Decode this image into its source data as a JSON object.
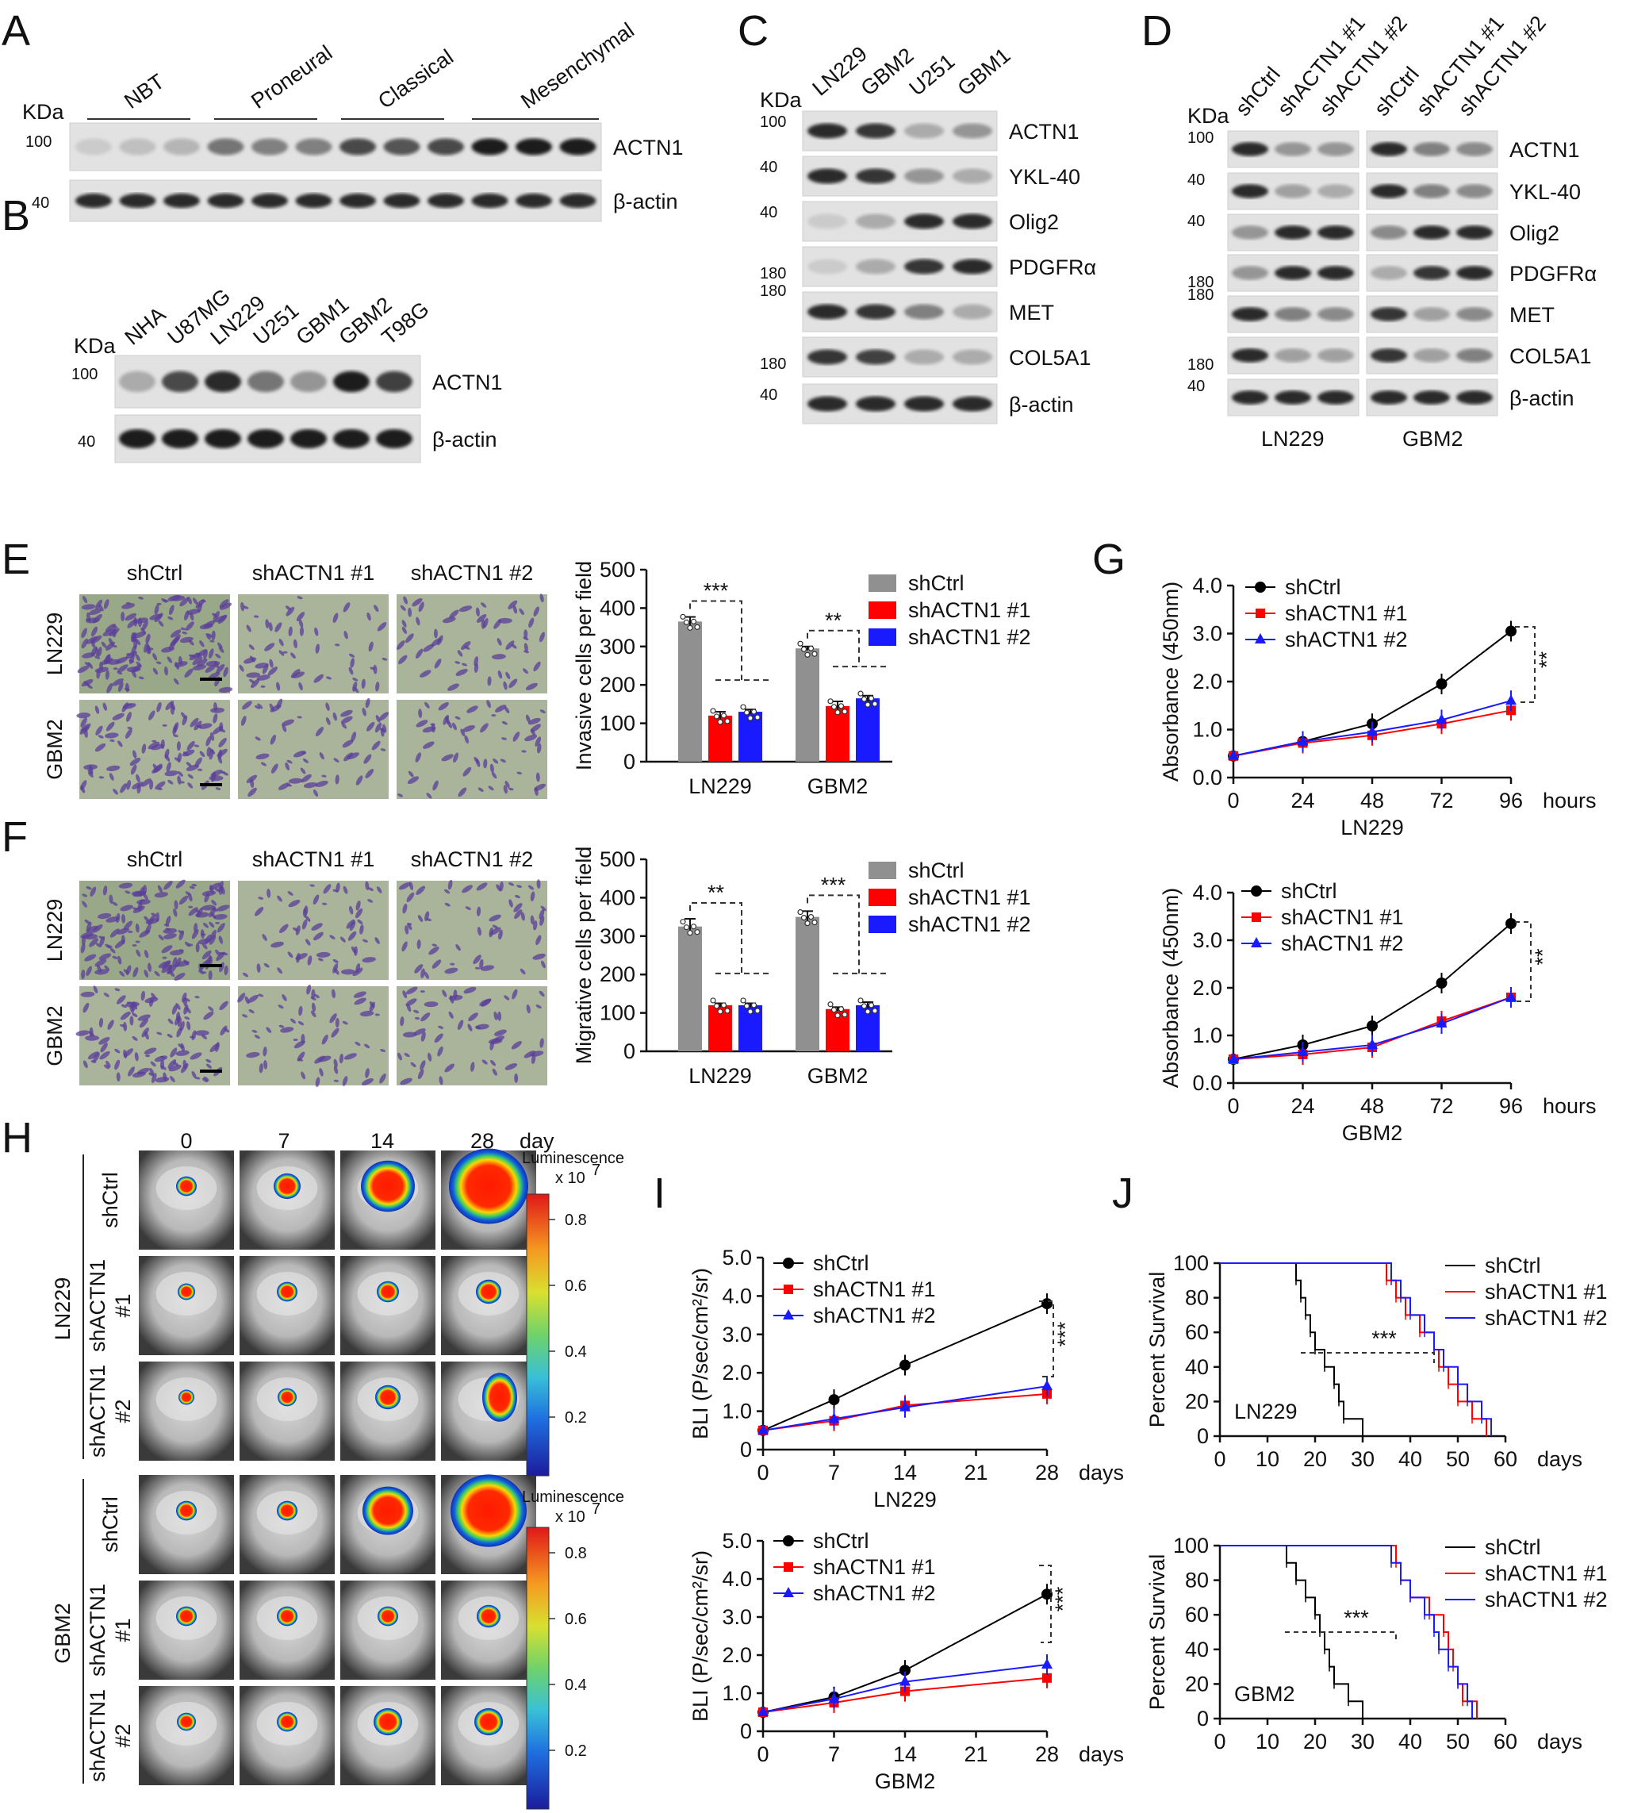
{
  "panel_letters": [
    "A",
    "B",
    "C",
    "D",
    "E",
    "F",
    "G",
    "H",
    "I",
    "J"
  ],
  "kda": "KDa",
  "panelA": {
    "groups": [
      "NBT",
      "Proneural",
      "Classical",
      "Mesenchymal"
    ],
    "markers": [
      "100",
      "40"
    ],
    "rows": [
      {
        "label": "ACTN1",
        "intensity": [
          0.15,
          0.2,
          0.25,
          0.55,
          0.5,
          0.5,
          0.75,
          0.7,
          0.75,
          0.95,
          0.95,
          0.95
        ]
      },
      {
        "label": "β-actin",
        "intensity": [
          0.9,
          0.9,
          0.9,
          0.9,
          0.9,
          0.9,
          0.9,
          0.9,
          0.9,
          0.9,
          0.9,
          0.9
        ]
      }
    ]
  },
  "panelB": {
    "lanes": [
      "NHA",
      "U87MG",
      "LN229",
      "U251",
      "GBM1",
      "GBM2",
      "T98G"
    ],
    "markers": [
      "100",
      "40"
    ],
    "rows": [
      {
        "label": "ACTN1",
        "intensity": [
          0.3,
          0.75,
          0.9,
          0.55,
          0.4,
          0.95,
          0.8
        ]
      },
      {
        "label": "β-actin",
        "intensity": [
          0.95,
          0.95,
          0.95,
          0.95,
          0.95,
          0.95,
          0.95
        ]
      }
    ]
  },
  "panelC": {
    "lanes": [
      "LN229",
      "GBM2",
      "U251",
      "GBM1"
    ],
    "markers": [
      "100",
      "40",
      "40",
      "180",
      "180",
      "180",
      "40"
    ],
    "rows": [
      {
        "label": "ACTN1",
        "intensity": [
          0.9,
          0.85,
          0.3,
          0.4
        ]
      },
      {
        "label": "YKL-40",
        "intensity": [
          0.9,
          0.85,
          0.4,
          0.3
        ]
      },
      {
        "label": "Olig2",
        "intensity": [
          0.15,
          0.3,
          0.9,
          0.9
        ]
      },
      {
        "label": "PDGFRα",
        "intensity": [
          0.15,
          0.3,
          0.85,
          0.9
        ]
      },
      {
        "label": "MET",
        "intensity": [
          0.9,
          0.85,
          0.5,
          0.3
        ]
      },
      {
        "label": "COL5A1",
        "intensity": [
          0.85,
          0.8,
          0.3,
          0.3
        ]
      },
      {
        "label": "β-actin",
        "intensity": [
          0.9,
          0.9,
          0.9,
          0.9
        ]
      }
    ]
  },
  "panelD": {
    "lanes": [
      "shCtrl",
      "shACTN1 #1",
      "shACTN1 #2",
      "shCtrl",
      "shACTN1 #1",
      "shACTN1 #2"
    ],
    "markers": [
      "100",
      "40",
      "40",
      "180",
      "180",
      "180",
      "40"
    ],
    "groups": [
      "LN229",
      "GBM2"
    ],
    "rows": [
      {
        "label": "ACTN1",
        "intensity": [
          0.9,
          0.4,
          0.4,
          0.9,
          0.5,
          0.45
        ]
      },
      {
        "label": "YKL-40",
        "intensity": [
          0.9,
          0.35,
          0.3,
          0.9,
          0.5,
          0.45
        ]
      },
      {
        "label": "Olig2",
        "intensity": [
          0.4,
          0.9,
          0.9,
          0.45,
          0.9,
          0.9
        ]
      },
      {
        "label": "PDGFRα",
        "intensity": [
          0.4,
          0.9,
          0.9,
          0.3,
          0.85,
          0.9
        ]
      },
      {
        "label": "MET",
        "intensity": [
          0.9,
          0.5,
          0.45,
          0.85,
          0.35,
          0.45
        ]
      },
      {
        "label": "COL5A1",
        "intensity": [
          0.9,
          0.35,
          0.35,
          0.85,
          0.35,
          0.5
        ]
      },
      {
        "label": "β-actin",
        "intensity": [
          0.9,
          0.9,
          0.9,
          0.9,
          0.9,
          0.9
        ]
      }
    ]
  },
  "micro": {
    "cols": [
      "shCtrl",
      "shACTN1 #1",
      "shACTN1 #2"
    ],
    "rows": [
      "LN229",
      "GBM2"
    ]
  },
  "legend_sh": [
    "shCtrl",
    "shACTN1 #1",
    "shACTN1 #2"
  ],
  "chart_data": [
    {
      "id": "E",
      "type": "bar",
      "ylabel": "Invasive cells per field",
      "ylim": [
        0,
        500
      ],
      "yticks": [
        "0",
        "100",
        "200",
        "300",
        "400",
        "500"
      ],
      "categories": [
        "LN229",
        "GBM2"
      ],
      "series": [
        {
          "name": "shCtrl",
          "color": "#909090",
          "values": [
            365,
            295
          ],
          "err": [
            12,
            5
          ]
        },
        {
          "name": "shACTN1 #1",
          "color": "#ff0000",
          "values": [
            120,
            145
          ],
          "err": [
            10,
            12
          ]
        },
        {
          "name": "shACTN1 #2",
          "color": "#1a1aff",
          "values": [
            130,
            165
          ],
          "err": [
            6,
            7
          ]
        }
      ],
      "annotations": [
        "***",
        "**"
      ]
    },
    {
      "id": "F",
      "type": "bar",
      "ylabel": "Migrative cells per field",
      "ylim": [
        0,
        500
      ],
      "yticks": [
        "0",
        "100",
        "200",
        "300",
        "400",
        "500"
      ],
      "categories": [
        "LN229",
        "GBM2"
      ],
      "series": [
        {
          "name": "shCtrl",
          "color": "#909090",
          "values": [
            325,
            350
          ],
          "err": [
            20,
            15
          ]
        },
        {
          "name": "shACTN1 #1",
          "color": "#ff0000",
          "values": [
            120,
            110
          ],
          "err": [
            5,
            5
          ]
        },
        {
          "name": "shACTN1 #2",
          "color": "#1a1aff",
          "values": [
            120,
            120
          ],
          "err": [
            5,
            8
          ]
        }
      ],
      "annotations": [
        "**",
        "***"
      ]
    },
    {
      "id": "G1",
      "type": "line",
      "title": "LN229",
      "ylabel": "Absorbance (450nm)",
      "xlabel": "hours",
      "x": [
        0,
        24,
        48,
        72,
        96
      ],
      "xticks": [
        "0",
        "24",
        "48",
        "72",
        "96"
      ],
      "ylim": [
        0,
        4
      ],
      "yticks": [
        "0.0",
        "1.0",
        "2.0",
        "3.0",
        "4.0"
      ],
      "series": [
        {
          "name": "shCtrl",
          "color": "#000000",
          "marker": "circle",
          "values": [
            0.45,
            0.75,
            1.12,
            1.95,
            3.05
          ]
        },
        {
          "name": "shACTN1 #1",
          "color": "#ff0000",
          "marker": "square",
          "values": [
            0.45,
            0.72,
            0.88,
            1.12,
            1.4
          ]
        },
        {
          "name": "shACTN1 #2",
          "color": "#1a1aff",
          "marker": "triangle",
          "values": [
            0.45,
            0.75,
            0.95,
            1.2,
            1.6
          ]
        }
      ],
      "annotation": "**"
    },
    {
      "id": "G2",
      "type": "line",
      "title": "GBM2",
      "ylabel": "Absorbance (450nm)",
      "xlabel": "hours",
      "x": [
        0,
        24,
        48,
        72,
        96
      ],
      "xticks": [
        "0",
        "24",
        "48",
        "72",
        "96"
      ],
      "ylim": [
        0,
        4
      ],
      "yticks": [
        "0.0",
        "1.0",
        "2.0",
        "3.0",
        "4.0"
      ],
      "series": [
        {
          "name": "shCtrl",
          "color": "#000000",
          "marker": "circle",
          "values": [
            0.5,
            0.8,
            1.2,
            2.1,
            3.35
          ]
        },
        {
          "name": "shACTN1 #1",
          "color": "#ff0000",
          "marker": "square",
          "values": [
            0.5,
            0.6,
            0.75,
            1.3,
            1.8
          ]
        },
        {
          "name": "shACTN1 #2",
          "color": "#1a1aff",
          "marker": "triangle",
          "values": [
            0.5,
            0.65,
            0.8,
            1.25,
            1.8
          ]
        }
      ],
      "annotation": "**"
    },
    {
      "id": "I1",
      "type": "line",
      "title": "LN229",
      "ylabel": "BLI (P/sec/cm²/sr)",
      "xlabel": "days",
      "x": [
        0,
        7,
        14,
        28
      ],
      "xticks": [
        "0",
        "7",
        "14",
        "21",
        "28"
      ],
      "xrange": [
        0,
        28
      ],
      "ylim": [
        0,
        5
      ],
      "yticks": [
        "0",
        "1.0",
        "2.0",
        "3.0",
        "4.0",
        "5.0"
      ],
      "series": [
        {
          "name": "shCtrl",
          "color": "#000000",
          "marker": "circle",
          "values": [
            0.5,
            1.3,
            2.2,
            3.8
          ]
        },
        {
          "name": "shACTN1 #1",
          "color": "#ff0000",
          "marker": "square",
          "values": [
            0.5,
            0.75,
            1.15,
            1.45
          ]
        },
        {
          "name": "shACTN1 #2",
          "color": "#1a1aff",
          "marker": "triangle",
          "values": [
            0.5,
            0.8,
            1.1,
            1.65
          ]
        }
      ],
      "annotation": "***"
    },
    {
      "id": "I2",
      "type": "line",
      "title": "GBM2",
      "ylabel": "BLI (P/sec/cm²/sr)",
      "xlabel": "days",
      "x": [
        0,
        7,
        14,
        28
      ],
      "xticks": [
        "0",
        "7",
        "14",
        "21",
        "28"
      ],
      "xrange": [
        0,
        28
      ],
      "ylim": [
        0,
        5
      ],
      "yticks": [
        "0",
        "1.0",
        "2.0",
        "3.0",
        "4.0",
        "5.0"
      ],
      "series": [
        {
          "name": "shCtrl",
          "color": "#000000",
          "marker": "circle",
          "values": [
            0.5,
            0.9,
            1.6,
            3.6
          ]
        },
        {
          "name": "shACTN1 #1",
          "color": "#ff0000",
          "marker": "square",
          "values": [
            0.5,
            0.75,
            1.05,
            1.4
          ]
        },
        {
          "name": "shACTN1 #2",
          "color": "#1a1aff",
          "marker": "triangle",
          "values": [
            0.5,
            0.85,
            1.3,
            1.75
          ]
        }
      ],
      "annotation": "***"
    },
    {
      "id": "J1",
      "type": "line",
      "title": "LN229",
      "ylabel": "Percent Survival",
      "xlabel": "days",
      "xticks": [
        "0",
        "10",
        "20",
        "30",
        "40",
        "50",
        "60"
      ],
      "xrange": [
        0,
        60
      ],
      "ylim": [
        0,
        100
      ],
      "yticks": [
        "0",
        "20",
        "40",
        "60",
        "80",
        "100"
      ],
      "series": [
        {
          "name": "shCtrl",
          "color": "#000000",
          "steps": [
            [
              0,
              100
            ],
            [
              16,
              90
            ],
            [
              17,
              80
            ],
            [
              18,
              70
            ],
            [
              19,
              60
            ],
            [
              20,
              50
            ],
            [
              22,
              40
            ],
            [
              24,
              30
            ],
            [
              25,
              20
            ],
            [
              26,
              10
            ],
            [
              30,
              0
            ]
          ]
        },
        {
          "name": "shACTN1 #1",
          "color": "#ff0000",
          "steps": [
            [
              0,
              100
            ],
            [
              35,
              90
            ],
            [
              37,
              80
            ],
            [
              39,
              70
            ],
            [
              42,
              60
            ],
            [
              45,
              50
            ],
            [
              46,
              40
            ],
            [
              48,
              30
            ],
            [
              50,
              20
            ],
            [
              53,
              10
            ],
            [
              56,
              0
            ]
          ]
        },
        {
          "name": "shACTN1 #2",
          "color": "#1a1aff",
          "steps": [
            [
              0,
              100
            ],
            [
              36,
              90
            ],
            [
              38,
              80
            ],
            [
              40,
              70
            ],
            [
              43,
              60
            ],
            [
              45,
              50
            ],
            [
              47,
              40
            ],
            [
              50,
              30
            ],
            [
              52,
              20
            ],
            [
              55,
              10
            ],
            [
              57,
              0
            ]
          ]
        }
      ],
      "annotation": "***"
    },
    {
      "id": "J2",
      "type": "line",
      "title": "GBM2",
      "ylabel": "Percent Survival",
      "xlabel": "days",
      "xticks": [
        "0",
        "10",
        "20",
        "30",
        "40",
        "50",
        "60"
      ],
      "xrange": [
        0,
        60
      ],
      "ylim": [
        0,
        100
      ],
      "yticks": [
        "0",
        "20",
        "40",
        "60",
        "80",
        "100"
      ],
      "series": [
        {
          "name": "shCtrl",
          "color": "#000000",
          "steps": [
            [
              0,
              100
            ],
            [
              14,
              90
            ],
            [
              16,
              80
            ],
            [
              18,
              70
            ],
            [
              20,
              60
            ],
            [
              21,
              50
            ],
            [
              22,
              40
            ],
            [
              23,
              30
            ],
            [
              24,
              20
            ],
            [
              27,
              10
            ],
            [
              30,
              0
            ]
          ]
        },
        {
          "name": "shACTN1 #1",
          "color": "#ff0000",
          "steps": [
            [
              0,
              100
            ],
            [
              37,
              90
            ],
            [
              38,
              80
            ],
            [
              40,
              70
            ],
            [
              44,
              60
            ],
            [
              47,
              50
            ],
            [
              48,
              40
            ],
            [
              49,
              30
            ],
            [
              50,
              20
            ],
            [
              51,
              10
            ],
            [
              54,
              0
            ]
          ]
        },
        {
          "name": "shACTN1 #2",
          "color": "#1a1aff",
          "steps": [
            [
              0,
              100
            ],
            [
              36,
              90
            ],
            [
              38,
              80
            ],
            [
              40,
              70
            ],
            [
              43,
              60
            ],
            [
              45,
              50
            ],
            [
              46,
              40
            ],
            [
              48,
              30
            ],
            [
              50,
              20
            ],
            [
              52,
              10
            ],
            [
              53,
              0
            ]
          ]
        }
      ],
      "annotation": "***"
    }
  ],
  "panelH": {
    "days": [
      "0",
      "7",
      "14",
      "28"
    ],
    "day_label": "day",
    "lum_label": "Luminescence",
    "lum_scale": "x 10",
    "lum_exp": "7",
    "lum_ticks": [
      "0.8",
      "0.6",
      "0.4",
      "0.2"
    ],
    "groups": [
      "LN229",
      "GBM2"
    ],
    "rows": [
      "shCtrl",
      "shACTN1 #1",
      "shACTN1 #2"
    ]
  }
}
